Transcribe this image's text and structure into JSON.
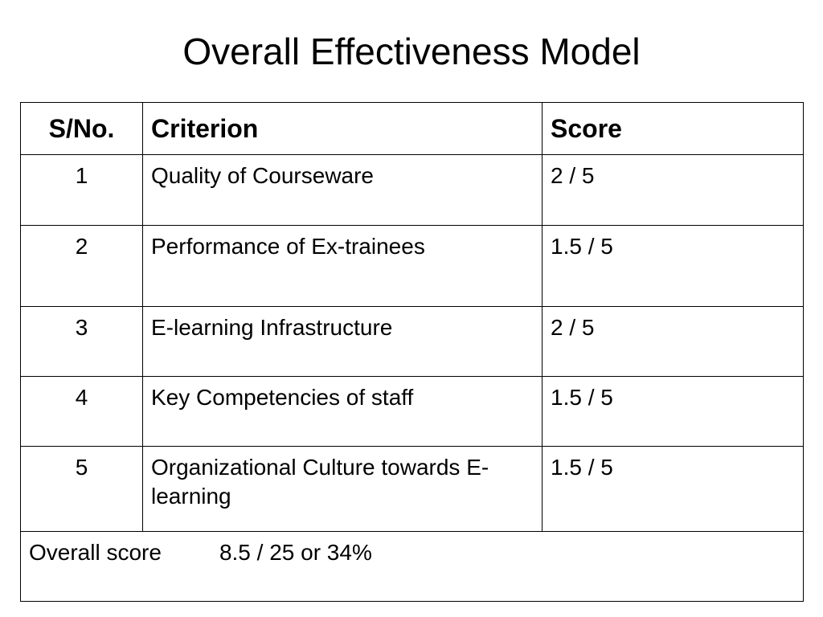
{
  "title": "Overall Effectiveness Model",
  "table": {
    "headers": [
      "S/No.",
      "Criterion",
      "Score"
    ],
    "rows": [
      {
        "sno": "1",
        "criterion": "Quality of Courseware",
        "score": "2 / 5"
      },
      {
        "sno": "2",
        "criterion": "Performance of Ex-trainees",
        "score": "1.5 / 5"
      },
      {
        "sno": "3",
        "criterion": "E-learning Infrastructure",
        "score": "2 / 5"
      },
      {
        "sno": "4",
        "criterion": "Key Competencies of staff",
        "score": "1.5 / 5"
      },
      {
        "sno": "5",
        "criterion": "Organizational Culture towards E-learning",
        "score": "1.5 / 5"
      }
    ],
    "overall": {
      "label": "Overall score",
      "value": "8.5 / 25 or 34%"
    }
  }
}
